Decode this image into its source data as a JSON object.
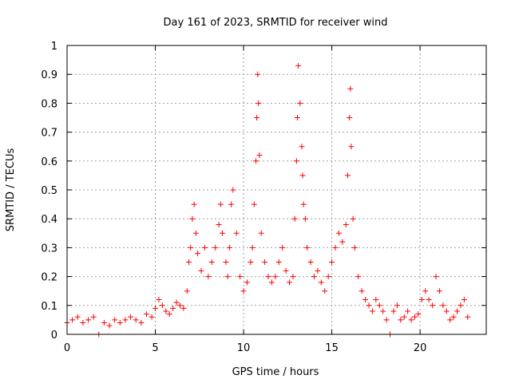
{
  "chart_data": {
    "type": "scatter",
    "title": "Day 161 of 2023, SRMTID for receiver wind",
    "xlabel": "GPS time / hours",
    "ylabel": "SRMTID / TECUs",
    "xlim": [
      0,
      23.75
    ],
    "ylim": [
      0,
      1
    ],
    "x_ticks": [
      0,
      5,
      10,
      15,
      20
    ],
    "x_tick_labels": [
      "0",
      "5",
      "10",
      "15",
      "20"
    ],
    "y_ticks": [
      0,
      0.1,
      0.2,
      0.3,
      0.4,
      0.5,
      0.6,
      0.7,
      0.8,
      0.9,
      1
    ],
    "y_tick_labels": [
      "0",
      "0.1",
      "0.2",
      "0.3",
      "0.4",
      "0.5",
      "0.6",
      "0.7",
      "0.8",
      "0.9",
      "1"
    ],
    "grid": true,
    "marker": "+",
    "color": "#ff0000",
    "series": [
      {
        "name": "SRMTID",
        "x": [
          0.0,
          0.3,
          0.6,
          0.9,
          1.2,
          1.5,
          1.8,
          2.1,
          2.4,
          2.7,
          3.0,
          3.3,
          3.6,
          3.9,
          4.2,
          4.5,
          4.8,
          5.0,
          5.2,
          5.4,
          5.6,
          5.8,
          6.0,
          6.2,
          6.4,
          6.6,
          6.8,
          6.9,
          7.0,
          7.1,
          7.2,
          7.3,
          7.4,
          7.6,
          7.8,
          8.0,
          8.2,
          8.4,
          8.6,
          8.7,
          8.8,
          9.0,
          9.1,
          9.2,
          9.3,
          9.4,
          9.6,
          9.8,
          10.0,
          10.2,
          10.4,
          10.5,
          10.6,
          10.7,
          10.75,
          10.8,
          10.85,
          10.9,
          11.0,
          11.2,
          11.4,
          11.6,
          11.8,
          12.0,
          12.2,
          12.4,
          12.6,
          12.8,
          12.9,
          13.0,
          13.05,
          13.1,
          13.2,
          13.3,
          13.35,
          13.4,
          13.5,
          13.6,
          13.8,
          14.0,
          14.2,
          14.4,
          14.6,
          14.8,
          15.0,
          15.2,
          15.4,
          15.6,
          15.8,
          15.9,
          16.0,
          16.05,
          16.1,
          16.2,
          16.3,
          16.5,
          16.7,
          16.9,
          17.1,
          17.3,
          17.5,
          17.7,
          17.9,
          18.1,
          18.3,
          18.5,
          18.7,
          18.9,
          19.1,
          19.3,
          19.5,
          19.7,
          19.9,
          20.1,
          20.3,
          20.5,
          20.7,
          20.9,
          21.1,
          21.3,
          21.5,
          21.7,
          21.9,
          22.1,
          22.3,
          22.5,
          22.7
        ],
        "values": [
          0.04,
          0.05,
          0.06,
          0.04,
          0.05,
          0.06,
          0.0,
          0.04,
          0.03,
          0.05,
          0.04,
          0.05,
          0.06,
          0.05,
          0.04,
          0.07,
          0.06,
          0.09,
          0.12,
          0.1,
          0.08,
          0.07,
          0.09,
          0.11,
          0.1,
          0.09,
          0.15,
          0.25,
          0.3,
          0.4,
          0.45,
          0.35,
          0.28,
          0.22,
          0.3,
          0.2,
          0.25,
          0.3,
          0.38,
          0.45,
          0.35,
          0.25,
          0.2,
          0.3,
          0.45,
          0.5,
          0.35,
          0.2,
          0.15,
          0.18,
          0.25,
          0.3,
          0.45,
          0.6,
          0.75,
          0.9,
          0.8,
          0.62,
          0.35,
          0.25,
          0.2,
          0.18,
          0.2,
          0.25,
          0.3,
          0.22,
          0.18,
          0.2,
          0.4,
          0.6,
          0.75,
          0.93,
          0.8,
          0.65,
          0.55,
          0.45,
          0.4,
          0.3,
          0.25,
          0.2,
          0.22,
          0.18,
          0.15,
          0.2,
          0.25,
          0.3,
          0.35,
          0.32,
          0.38,
          0.55,
          0.75,
          0.85,
          0.65,
          0.4,
          0.3,
          0.2,
          0.15,
          0.12,
          0.1,
          0.08,
          0.12,
          0.1,
          0.08,
          0.05,
          0.0,
          0.08,
          0.1,
          0.05,
          0.06,
          0.08,
          0.05,
          0.06,
          0.07,
          0.12,
          0.15,
          0.12,
          0.1,
          0.2,
          0.15,
          0.1,
          0.08,
          0.05,
          0.06,
          0.08,
          0.1,
          0.12,
          0.06
        ]
      }
    ]
  }
}
